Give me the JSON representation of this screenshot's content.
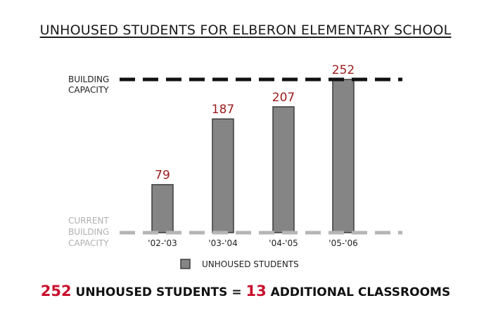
{
  "colors": {
    "bar_fill": "#858585",
    "bar_stroke": "#3c3c3c",
    "value_label": "#9b1b1b",
    "capacity_line": "#111111",
    "current_capacity_line": "#b5b5b5",
    "current_capacity_label": "#b0b0b0",
    "footer_highlight": "#c8102e"
  },
  "chart_data": {
    "type": "bar",
    "title": "UNHOUSED STUDENTS FOR ELBERON ELEMENTARY SCHOOL",
    "categories": [
      "'02-'03",
      "'03-'04",
      "'04-'05",
      "'05-'06"
    ],
    "series": [
      {
        "name": "UNHOUSED STUDENTS",
        "values": [
          79,
          187,
          207,
          252
        ]
      }
    ],
    "data_labels": [
      "79",
      "187",
      "207",
      "252"
    ],
    "reference_lines": [
      {
        "label_lines": [
          "BUILDING",
          "CAPACITY"
        ],
        "value": 252,
        "style": "dashed-black"
      },
      {
        "label_lines": [
          "CURRENT",
          "BUILDING",
          "CAPACITY"
        ],
        "value": 0,
        "style": "dashed-gray"
      }
    ],
    "legend": {
      "label": "UNHOUSED STUDENTS",
      "placement": "bottom-center"
    },
    "ylim": [
      0,
      252
    ],
    "grid": false,
    "xlabel": "",
    "ylabel": ""
  },
  "footer": {
    "students_count": "252",
    "students_text": " UNHOUSED STUDENTS = ",
    "classrooms_count": "13",
    "classrooms_text": " ADDITIONAL CLASSROOMS"
  }
}
